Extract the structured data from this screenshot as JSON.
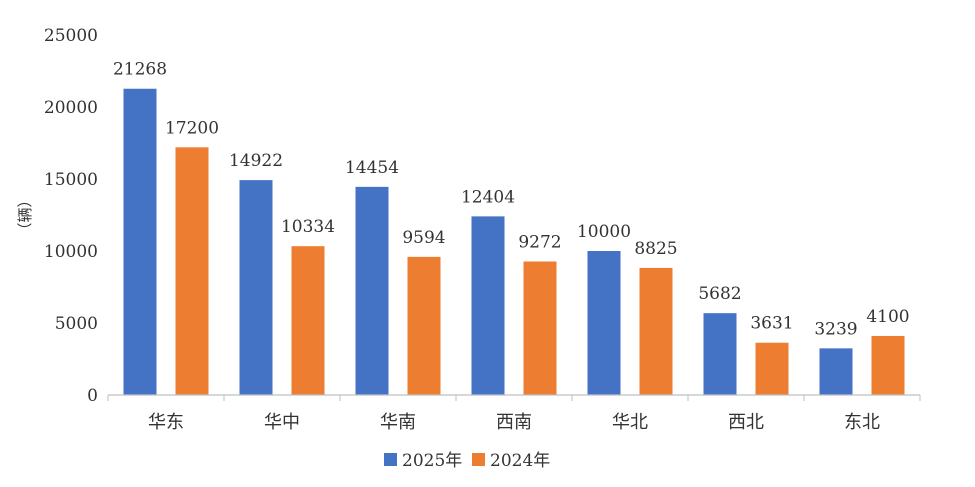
{
  "chart_data": {
    "type": "bar",
    "title": "",
    "xlabel": "",
    "ylabel": "（辆）",
    "ylim": [
      0,
      25000
    ],
    "yticks": [
      0,
      5000,
      10000,
      15000,
      20000,
      25000
    ],
    "categories": [
      "华东",
      "华中",
      "华南",
      "西南",
      "华北",
      "西北",
      "东北"
    ],
    "series": [
      {
        "name": "2025年",
        "color": "#4472C4",
        "values": [
          21268,
          14922,
          14454,
          12404,
          10000,
          5682,
          3239
        ]
      },
      {
        "name": "2024年",
        "color": "#ED7D31",
        "values": [
          17200,
          10334,
          9594,
          9272,
          8825,
          3631,
          4100
        ]
      }
    ],
    "grid": false,
    "legend_position": "bottom-center",
    "data_labels": true
  }
}
